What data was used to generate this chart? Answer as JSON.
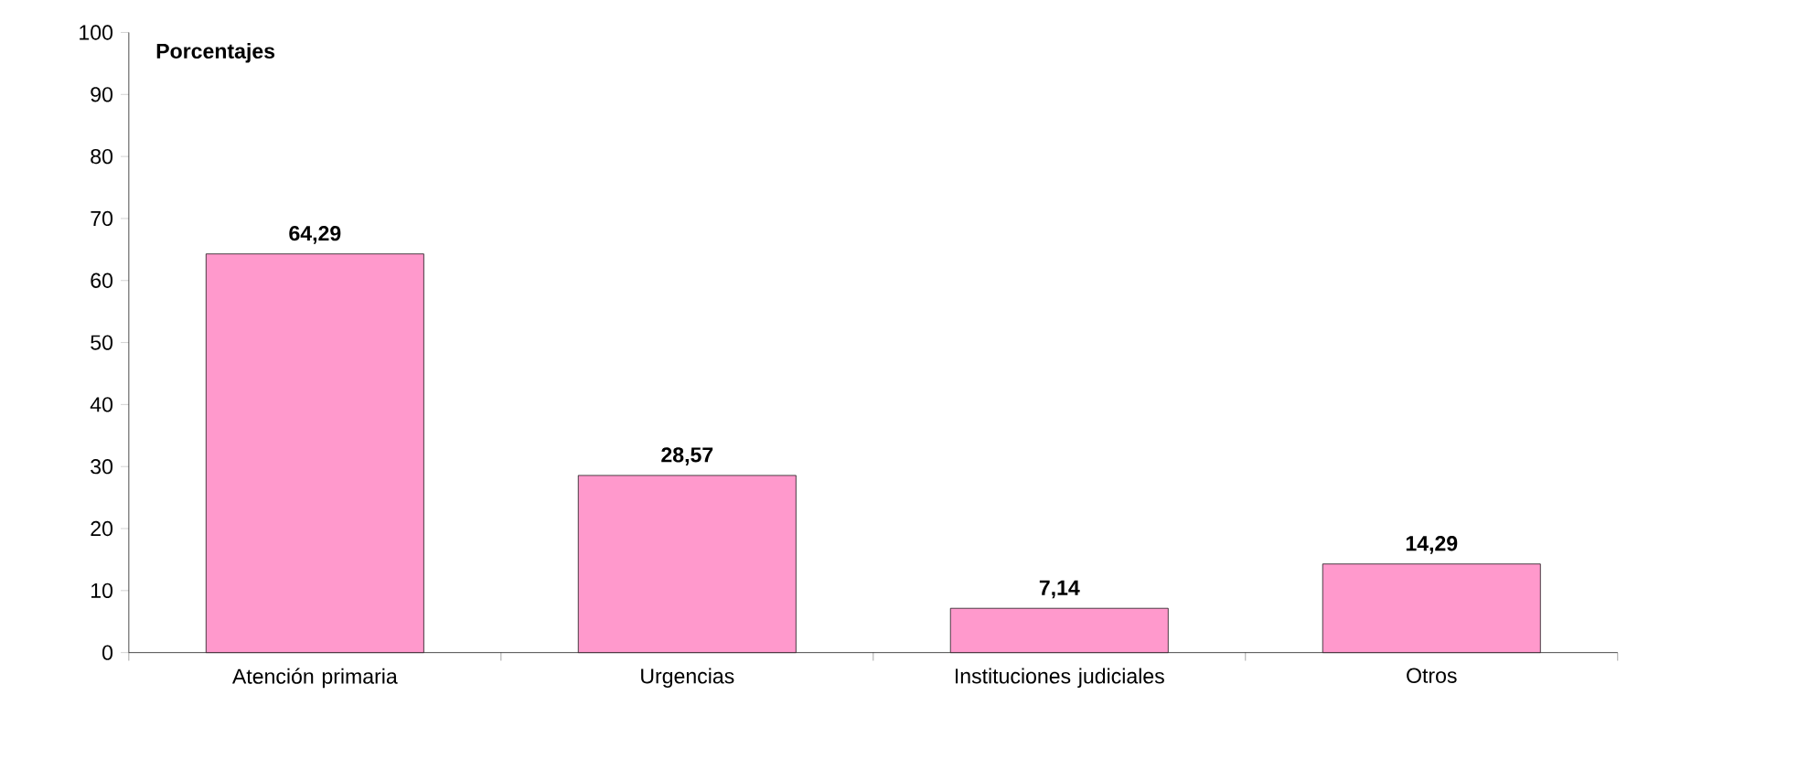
{
  "chart_data": {
    "type": "bar",
    "ylabel": "Porcentajes",
    "categories": [
      "Atención primaria",
      "Urgencias",
      "Instituciones judiciales",
      "Otros"
    ],
    "values": [
      64.29,
      28.57,
      7.14,
      14.29
    ],
    "value_labels": [
      "64,29",
      "28,57",
      "7,14",
      "14,29"
    ],
    "color": "#ff99cc",
    "ylim": [
      0,
      100
    ],
    "yticks": [
      0,
      10,
      20,
      30,
      40,
      50,
      60,
      70,
      80,
      90,
      100
    ]
  }
}
